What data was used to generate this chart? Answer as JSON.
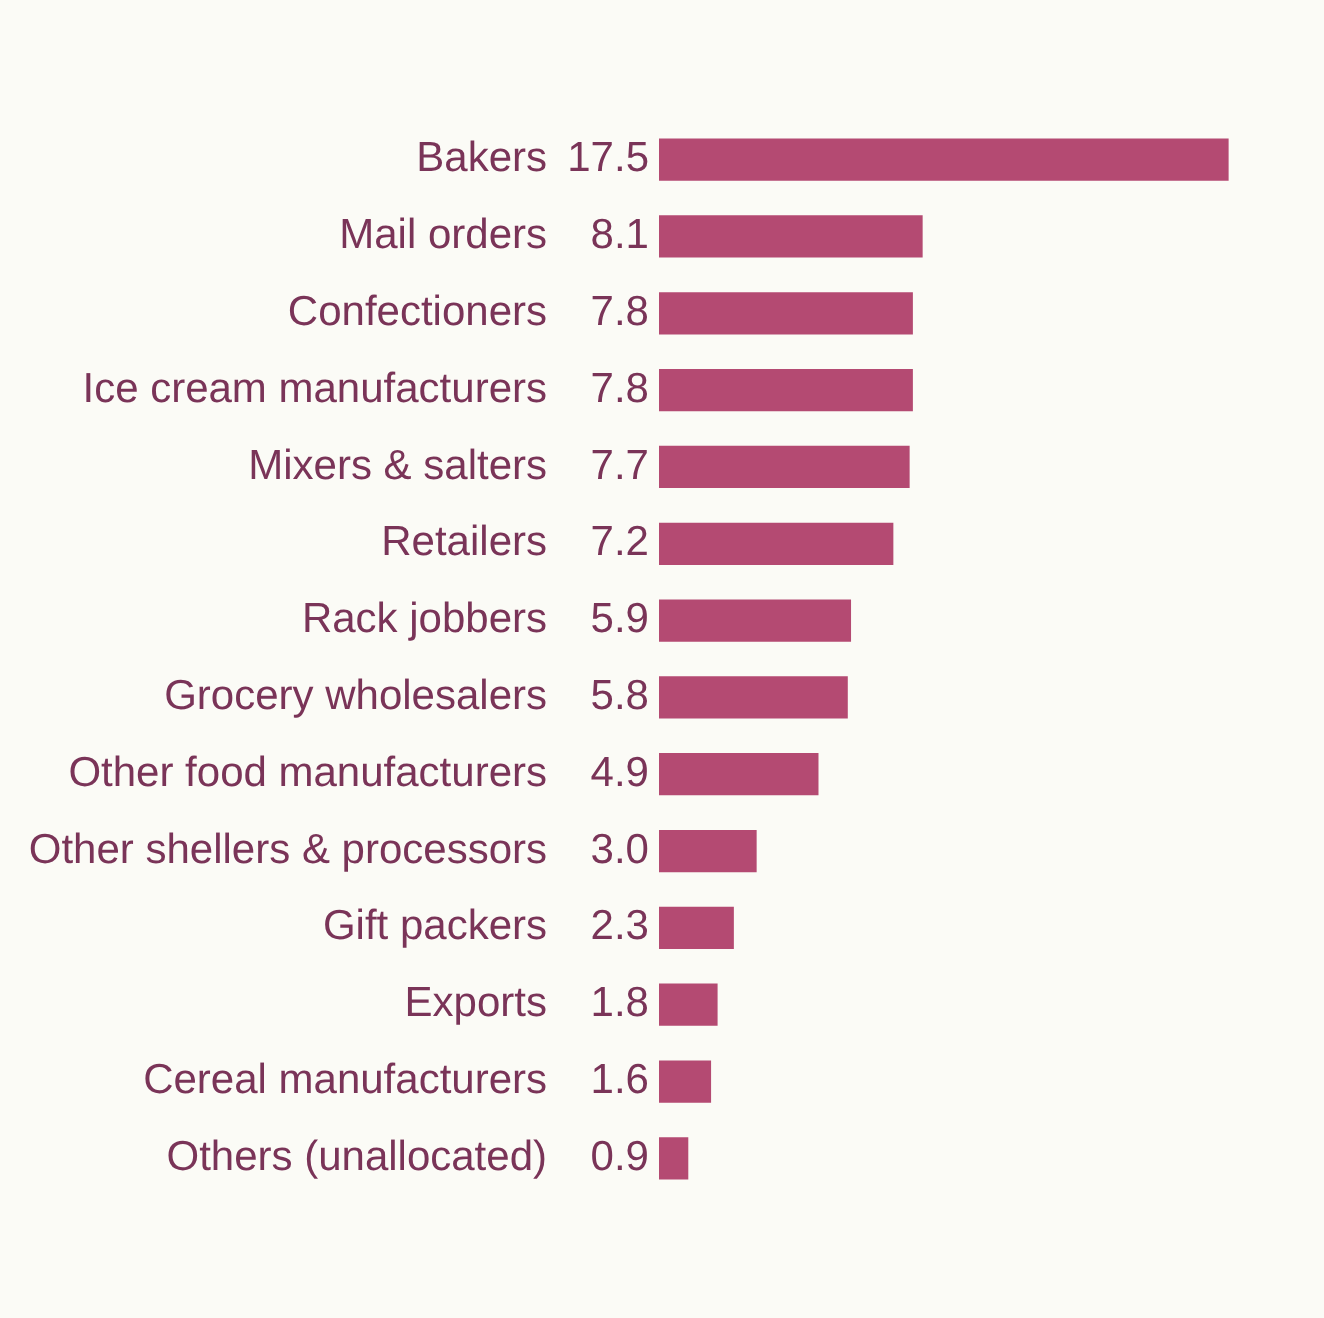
{
  "chart_data": {
    "type": "bar",
    "orientation": "horizontal",
    "categories": [
      "Bakers",
      "Mail orders",
      "Confectioners",
      "Ice cream manufacturers",
      "Mixers & salters",
      "Retailers",
      "Rack jobbers",
      "Grocery wholesalers",
      "Other food manufacturers",
      "Other shellers & processors",
      "Gift packers",
      "Exports",
      "Cereal manufacturers",
      "Others (unallocated)"
    ],
    "values": [
      17.5,
      8.1,
      7.8,
      7.8,
      7.7,
      7.2,
      5.9,
      5.8,
      4.9,
      3.0,
      2.3,
      1.8,
      1.6,
      0.9
    ],
    "value_labels": [
      "17.5",
      "8.1",
      "7.8",
      "7.8",
      "7.7",
      "7.2",
      "5.9",
      "5.8",
      "4.9",
      "3.0",
      "2.3",
      "1.8",
      "1.6",
      "0.9"
    ],
    "color": "#b44a72"
  }
}
